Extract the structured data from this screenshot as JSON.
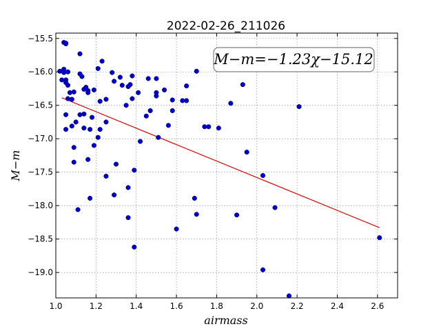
{
  "chart_data": {
    "type": "scatter",
    "title": "2022-02-26_211026",
    "xlabel": "airmass",
    "ylabel": "M−m",
    "xlim": [
      1.0,
      2.7
    ],
    "ylim": [
      -19.38,
      -15.42
    ],
    "y_inverted": true,
    "xticks": [
      "1.0",
      "1.2",
      "1.4",
      "1.6",
      "1.8",
      "2.0",
      "2.2",
      "2.4",
      "2.6"
    ],
    "yticks": [
      "−15.5",
      "−16.0",
      "−16.5",
      "−17.0",
      "−17.5",
      "−18.0",
      "−18.5",
      "−19.0"
    ],
    "grid": true,
    "annotation": {
      "text": "M−m=−1.23χ−15.12",
      "position": "top-right"
    },
    "fit_line": {
      "slope": -1.23,
      "intercept": -15.12,
      "x_range": [
        1.03,
        2.61
      ],
      "color": "#e60000"
    },
    "marker_color": "#0000cc",
    "series": [
      {
        "x": [
          1.04,
          1.05,
          1.05,
          1.04,
          1.02,
          1.04,
          1.03,
          1.05,
          1.05,
          1.06,
          1.06,
          1.07,
          1.06,
          1.08,
          1.09,
          1.12,
          1.12,
          1.13,
          1.14,
          1.15,
          1.16,
          1.16,
          1.19,
          1.21,
          1.23,
          1.22,
          1.25,
          1.28,
          1.29,
          1.32,
          1.33,
          1.35,
          1.37,
          1.38,
          1.38,
          1.41,
          1.46,
          1.5,
          1.5,
          1.5,
          1.54,
          1.58,
          1.63,
          1.65,
          1.65,
          1.7,
          1.76,
          1.87,
          1.93,
          2.21,
          1.05,
          1.1,
          1.12,
          1.14,
          1.17,
          1.18,
          1.22,
          1.25,
          1.36,
          1.45,
          1.47,
          1.56,
          1.58,
          1.74,
          1.81,
          1.05,
          1.08,
          1.09,
          1.14,
          1.19,
          1.21,
          1.51,
          1.42,
          1.95,
          1.09,
          1.16,
          1.3,
          1.25,
          1.39,
          1.36,
          1.29,
          2.03,
          1.17,
          1.69,
          2.09,
          1.11,
          1.7,
          1.9,
          1.36,
          1.6,
          2.61,
          1.39,
          2.03,
          2.16
        ],
        "y": [
          -15.56,
          -15.57,
          -15.58,
          -15.96,
          -15.99,
          -16.01,
          -16.12,
          -16.12,
          -16.16,
          -16.0,
          -16.2,
          -16.31,
          -16.4,
          -16.41,
          -16.3,
          -15.73,
          -16.03,
          -16.07,
          -16.26,
          -16.23,
          -16.28,
          -16.31,
          -16.27,
          -15.95,
          -15.84,
          -16.44,
          -16.41,
          -16.01,
          -16.14,
          -16.08,
          -16.2,
          -16.5,
          -16.19,
          -16.06,
          -16.4,
          -16.31,
          -16.1,
          -16.1,
          -16.31,
          -16.36,
          -16.27,
          -16.42,
          -16.43,
          -16.43,
          -16.21,
          -15.99,
          -16.82,
          -16.47,
          -16.19,
          -16.52,
          -16.64,
          -16.75,
          -16.64,
          -16.63,
          -16.86,
          -16.68,
          -16.86,
          -16.75,
          -16.22,
          -16.66,
          -16.58,
          -16.8,
          -16.58,
          -16.82,
          -16.84,
          -16.86,
          -16.81,
          -17.13,
          -16.84,
          -17.1,
          -16.98,
          -16.98,
          -17.04,
          -17.2,
          -17.35,
          -17.31,
          -17.38,
          -17.56,
          -17.47,
          -17.73,
          -17.84,
          -17.55,
          -17.89,
          -17.89,
          -18.03,
          -18.06,
          -18.13,
          -18.14,
          -18.18,
          -18.35,
          -18.48,
          -18.62,
          -18.96,
          -19.35
        ]
      }
    ]
  }
}
